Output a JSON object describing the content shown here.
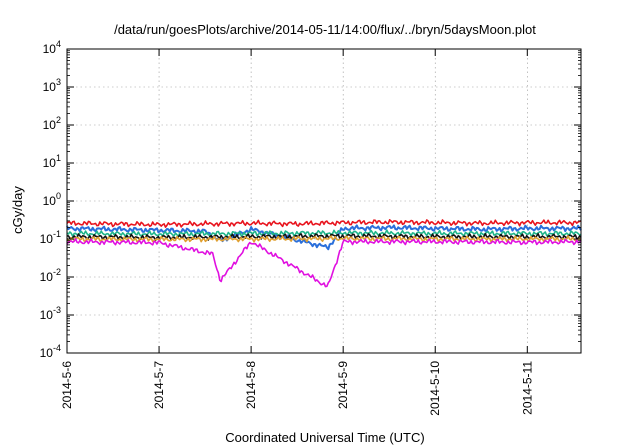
{
  "chart_data": {
    "type": "line",
    "title": "/data/run/goesPlots/archive/2014-05-11/14:00/flux/../bryn/5daysMoon.plot",
    "xlabel": "Coordinated Universal Time (UTC)",
    "ylabel": "cGy/day",
    "yscale": "log",
    "ylim": [
      0.0001,
      10000
    ],
    "y_ticks": [
      {
        "value": 0.0001,
        "base": "10",
        "exp": "-4"
      },
      {
        "value": 0.001,
        "base": "10",
        "exp": "-3"
      },
      {
        "value": 0.01,
        "base": "10",
        "exp": "-2"
      },
      {
        "value": 0.1,
        "base": "10",
        "exp": "-1"
      },
      {
        "value": 1,
        "base": "10",
        "exp": "0"
      },
      {
        "value": 10,
        "base": "10",
        "exp": "1"
      },
      {
        "value": 100,
        "base": "10",
        "exp": "2"
      },
      {
        "value": 1000,
        "base": "10",
        "exp": "3"
      },
      {
        "value": 10000,
        "base": "10",
        "exp": "4"
      }
    ],
    "xlim": [
      "2014-05-06 00:00",
      "2014-05-11 14:00"
    ],
    "x_ticks": [
      "2014-5-6",
      "2014-5-7",
      "2014-5-8",
      "2014-5-9",
      "2014-5-10",
      "2014-5-11"
    ],
    "grid": true,
    "series": [
      {
        "color": "#e8141e",
        "base": 0.26,
        "points": [
          [
            "2014-05-06 00:00",
            0.26
          ],
          [
            "2014-05-06 12:00",
            0.25
          ],
          [
            "2014-05-07 00:00",
            0.24
          ],
          [
            "2014-05-07 12:00",
            0.25
          ],
          [
            "2014-05-08 00:00",
            0.26
          ],
          [
            "2014-05-08 12:00",
            0.25
          ],
          [
            "2014-05-09 00:00",
            0.27
          ],
          [
            "2014-05-09 12:00",
            0.28
          ],
          [
            "2014-05-10 00:00",
            0.27
          ],
          [
            "2014-05-10 12:00",
            0.26
          ],
          [
            "2014-05-11 00:00",
            0.27
          ],
          [
            "2014-05-11 14:00",
            0.27
          ]
        ]
      },
      {
        "color": "#2a6fdb",
        "base": 0.18,
        "points": [
          [
            "2014-05-06 00:00",
            0.19
          ],
          [
            "2014-05-06 12:00",
            0.18
          ],
          [
            "2014-05-07 00:00",
            0.17
          ],
          [
            "2014-05-07 12:00",
            0.16
          ],
          [
            "2014-05-07 16:00",
            0.09
          ],
          [
            "2014-05-08 00:00",
            0.18
          ],
          [
            "2014-05-08 20:00",
            0.06
          ],
          [
            "2014-05-09 00:00",
            0.19
          ],
          [
            "2014-05-09 12:00",
            0.2
          ],
          [
            "2014-05-10 00:00",
            0.19
          ],
          [
            "2014-05-10 12:00",
            0.18
          ],
          [
            "2014-05-11 00:00",
            0.19
          ],
          [
            "2014-05-11 14:00",
            0.19
          ]
        ]
      },
      {
        "color": "#1fb58a",
        "base": 0.14,
        "points": [
          [
            "2014-05-06 00:00",
            0.14
          ],
          [
            "2014-05-07 00:00",
            0.135
          ],
          [
            "2014-05-08 00:00",
            0.14
          ],
          [
            "2014-05-09 00:00",
            0.145
          ],
          [
            "2014-05-10 00:00",
            0.14
          ],
          [
            "2014-05-11 00:00",
            0.14
          ],
          [
            "2014-05-11 14:00",
            0.14
          ]
        ]
      },
      {
        "color": "#111111",
        "base": 0.115,
        "points": [
          [
            "2014-05-06 00:00",
            0.115
          ],
          [
            "2014-05-07 00:00",
            0.11
          ],
          [
            "2014-05-08 00:00",
            0.115
          ],
          [
            "2014-05-09 00:00",
            0.12
          ],
          [
            "2014-05-10 00:00",
            0.115
          ],
          [
            "2014-05-11 00:00",
            0.115
          ],
          [
            "2014-05-11 14:00",
            0.115
          ]
        ]
      },
      {
        "color": "#e0a030",
        "base": 0.1,
        "points": [
          [
            "2014-05-06 00:00",
            0.1
          ],
          [
            "2014-05-07 00:00",
            0.098
          ],
          [
            "2014-05-08 00:00",
            0.1
          ],
          [
            "2014-05-09 00:00",
            0.103
          ],
          [
            "2014-05-10 00:00",
            0.1
          ],
          [
            "2014-05-11 00:00",
            0.1
          ],
          [
            "2014-05-11 14:00",
            0.1
          ]
        ]
      },
      {
        "color": "#e010e0",
        "base": 0.085,
        "points": [
          [
            "2014-05-06 00:00",
            0.085
          ],
          [
            "2014-05-07 00:00",
            0.08
          ],
          [
            "2014-05-07 14:00",
            0.04
          ],
          [
            "2014-05-07 16:00",
            0.008
          ],
          [
            "2014-05-08 00:00",
            0.085
          ],
          [
            "2014-05-08 20:00",
            0.0055
          ],
          [
            "2014-05-09 00:00",
            0.085
          ],
          [
            "2014-05-10 00:00",
            0.085
          ],
          [
            "2014-05-11 00:00",
            0.082
          ],
          [
            "2014-05-11 14:00",
            0.085
          ]
        ]
      }
    ]
  }
}
